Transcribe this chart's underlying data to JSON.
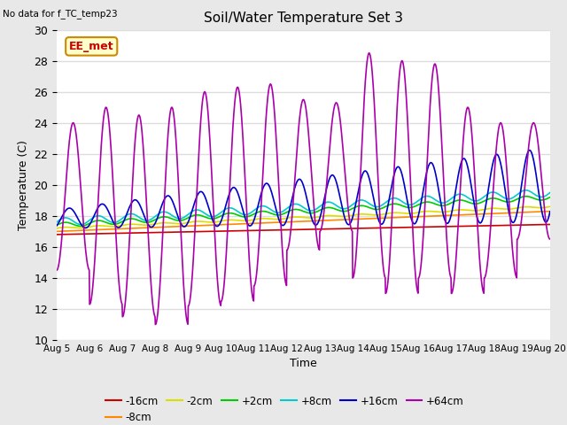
{
  "title": "Soil/Water Temperature Set 3",
  "note": "No data for f_TC_temp23",
  "legend_label": "EE_met",
  "xlabel": "Time",
  "ylabel": "Temperature (C)",
  "ylim": [
    10,
    30
  ],
  "xlim": [
    0,
    15
  ],
  "x_tick_labels": [
    "Aug 5",
    "Aug 6",
    "Aug 7",
    "Aug 8",
    "Aug 9",
    "Aug 10",
    "Aug 11",
    "Aug 12",
    "Aug 13",
    "Aug 14",
    "Aug 15",
    "Aug 16",
    "Aug 17",
    "Aug 18",
    "Aug 19",
    "Aug 20"
  ],
  "series_colors": {
    "-16cm": "#cc0000",
    "-8cm": "#ff8800",
    "-2cm": "#dddd00",
    "+2cm": "#00cc00",
    "+8cm": "#00cccc",
    "+16cm": "#0000cc",
    "+64cm": "#aa00aa"
  },
  "fig_bg_color": "#e8e8e8",
  "plot_bg_color": "#ffffff",
  "grid_color": "#dddddd",
  "ee_met_bg": "#ffffcc",
  "ee_met_border": "#cc8800",
  "ee_met_text": "#cc0000"
}
